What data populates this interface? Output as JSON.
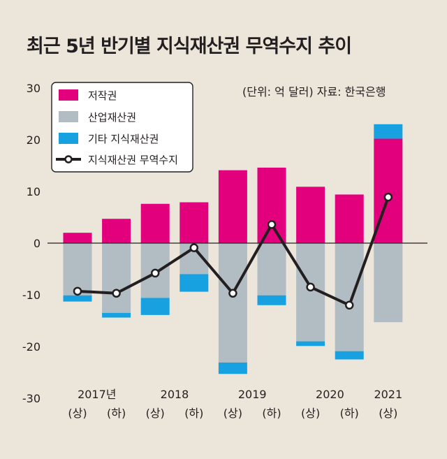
{
  "title": "최근 5년 반기별 지식재산권 무역수지 추이",
  "unit_note": "(단위: 억 달러)  자료: 한국은행",
  "colors": {
    "copyright": "#e3007d",
    "industrial": "#b1bcc3",
    "other": "#17a1e0",
    "balance_line": "#231f20",
    "background": "#ebe5da"
  },
  "chart_data": {
    "type": "bar",
    "subtype": "stacked bar with line",
    "title": "최근 5년 반기별 지식재산권 무역수지 추이",
    "ylim": [
      -30,
      30
    ],
    "yticks": [
      "30",
      "20",
      "10",
      "0",
      "-10",
      "-20",
      "-30"
    ],
    "ytick_values": [
      30,
      20,
      10,
      0,
      -10,
      -20,
      -30
    ],
    "categories": [
      "2017년 (상)",
      "2017년 (하)",
      "2018 (상)",
      "2018 (하)",
      "2019 (상)",
      "2019 (하)",
      "2020 (상)",
      "2020 (하)",
      "2021 (상)"
    ],
    "year_labels": [
      "2017년",
      "2018",
      "2019",
      "2020",
      "2021"
    ],
    "half_labels": [
      "(상)",
      "(하)",
      "(상)",
      "(하)",
      "(상)",
      "(하)",
      "(상)",
      "(하)",
      "(상)"
    ],
    "legend_position": "top-left",
    "series": [
      {
        "name": "저작권",
        "kind": "bar",
        "values": [
          2.0,
          4.7,
          7.6,
          7.9,
          14.1,
          14.6,
          10.9,
          9.4,
          20.2
        ]
      },
      {
        "name": "산업재산권",
        "kind": "bar",
        "values": [
          -10.1,
          -13.5,
          -10.6,
          -6.0,
          -23.1,
          -10.1,
          -19.0,
          -20.9,
          -15.3
        ]
      },
      {
        "name": "기타 지식재산권",
        "kind": "bar",
        "values": [
          -1.2,
          -0.9,
          -3.3,
          -3.4,
          -2.2,
          -1.9,
          -0.9,
          -1.6,
          2.8
        ]
      },
      {
        "name": "지식재산권 무역수지",
        "kind": "line",
        "values": [
          -9.3,
          -9.7,
          -5.8,
          -0.9,
          -9.7,
          3.6,
          -8.5,
          -12.0,
          8.9
        ]
      }
    ]
  }
}
